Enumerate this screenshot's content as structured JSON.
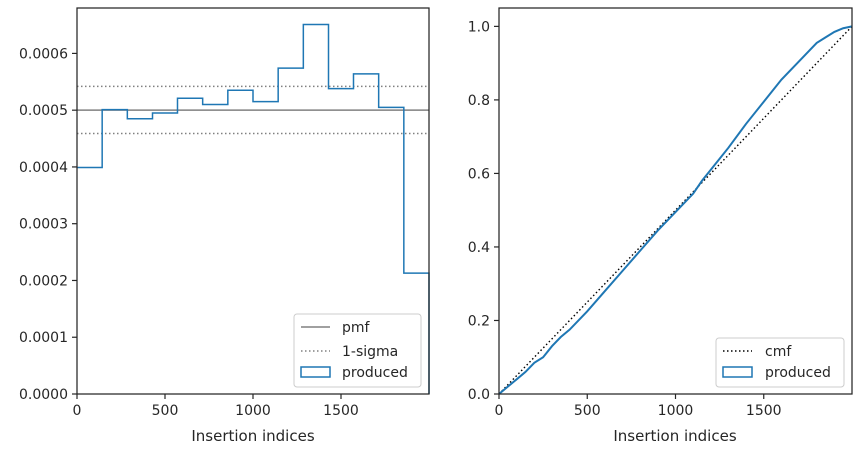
{
  "colors": {
    "produced": "#1f77b4",
    "pmf": "#808080",
    "sigma": "#808080",
    "cmf": "#000000",
    "axes": "#262626"
  },
  "chart_data": [
    {
      "type": "step-histogram",
      "xlabel": "Insertion indices",
      "ylabel": "",
      "xlim": [
        0,
        2000
      ],
      "ylim": [
        0,
        0.00068
      ],
      "xticks": [
        0,
        500,
        1000,
        1500
      ],
      "xtick_labels": [
        "0",
        "500",
        "1000",
        "1500"
      ],
      "yticks": [
        0,
        0.0001,
        0.0002,
        0.0003,
        0.0004,
        0.0005,
        0.0006
      ],
      "ytick_labels": [
        "0.0000",
        "0.0001",
        "0.0002",
        "0.0003",
        "0.0004",
        "0.0005",
        "0.0006"
      ],
      "bin_edges": [
        0,
        143,
        286,
        429,
        571,
        714,
        857,
        1000,
        1143,
        1286,
        1429,
        1571,
        1714,
        1857,
        2000
      ],
      "series": [
        {
          "name": "produced",
          "values": [
            0.000399,
            0.000501,
            0.000485,
            0.000495,
            0.000521,
            0.00051,
            0.000535,
            0.000515,
            0.000574,
            0.000651,
            0.000538,
            0.000564,
            0.000505,
            0.000213
          ]
        }
      ],
      "reference_lines": [
        {
          "name": "pmf",
          "y": 0.0005,
          "style": "solid"
        },
        {
          "name": "1-sigma",
          "y": 0.000542,
          "style": "dotted"
        },
        {
          "name": "1-sigma-lower",
          "y": 0.000459,
          "style": "dotted"
        }
      ],
      "legend": {
        "position": "lower right",
        "entries": [
          "pmf",
          "1-sigma",
          "produced"
        ]
      }
    },
    {
      "type": "line",
      "xlabel": "Insertion indices",
      "ylabel": "",
      "xlim": [
        0,
        2000
      ],
      "ylim": [
        0,
        1.05
      ],
      "xticks": [
        0,
        500,
        1000,
        1500
      ],
      "xtick_labels": [
        "0",
        "500",
        "1000",
        "1500"
      ],
      "yticks": [
        0,
        0.2,
        0.4,
        0.6,
        0.8,
        1.0
      ],
      "ytick_labels": [
        "0.0",
        "0.2",
        "0.4",
        "0.6",
        "0.8",
        "1.0"
      ],
      "series": [
        {
          "name": "cmf",
          "style": "dotted",
          "x": [
            0,
            2000
          ],
          "y": [
            0,
            1.0
          ]
        },
        {
          "name": "produced",
          "style": "solid",
          "x": [
            0,
            50,
            100,
            150,
            200,
            250,
            300,
            350,
            400,
            500,
            600,
            700,
            800,
            900,
            1000,
            1100,
            1150,
            1200,
            1300,
            1400,
            1500,
            1600,
            1700,
            1800,
            1850,
            1900,
            1950,
            2000
          ],
          "y": [
            0,
            0.02,
            0.04,
            0.06,
            0.085,
            0.1,
            0.13,
            0.155,
            0.175,
            0.225,
            0.28,
            0.335,
            0.39,
            0.445,
            0.495,
            0.545,
            0.58,
            0.61,
            0.67,
            0.735,
            0.795,
            0.855,
            0.905,
            0.955,
            0.97,
            0.985,
            0.995,
            1.0
          ]
        }
      ],
      "legend": {
        "position": "lower right",
        "entries": [
          "cmf",
          "produced"
        ]
      }
    }
  ]
}
